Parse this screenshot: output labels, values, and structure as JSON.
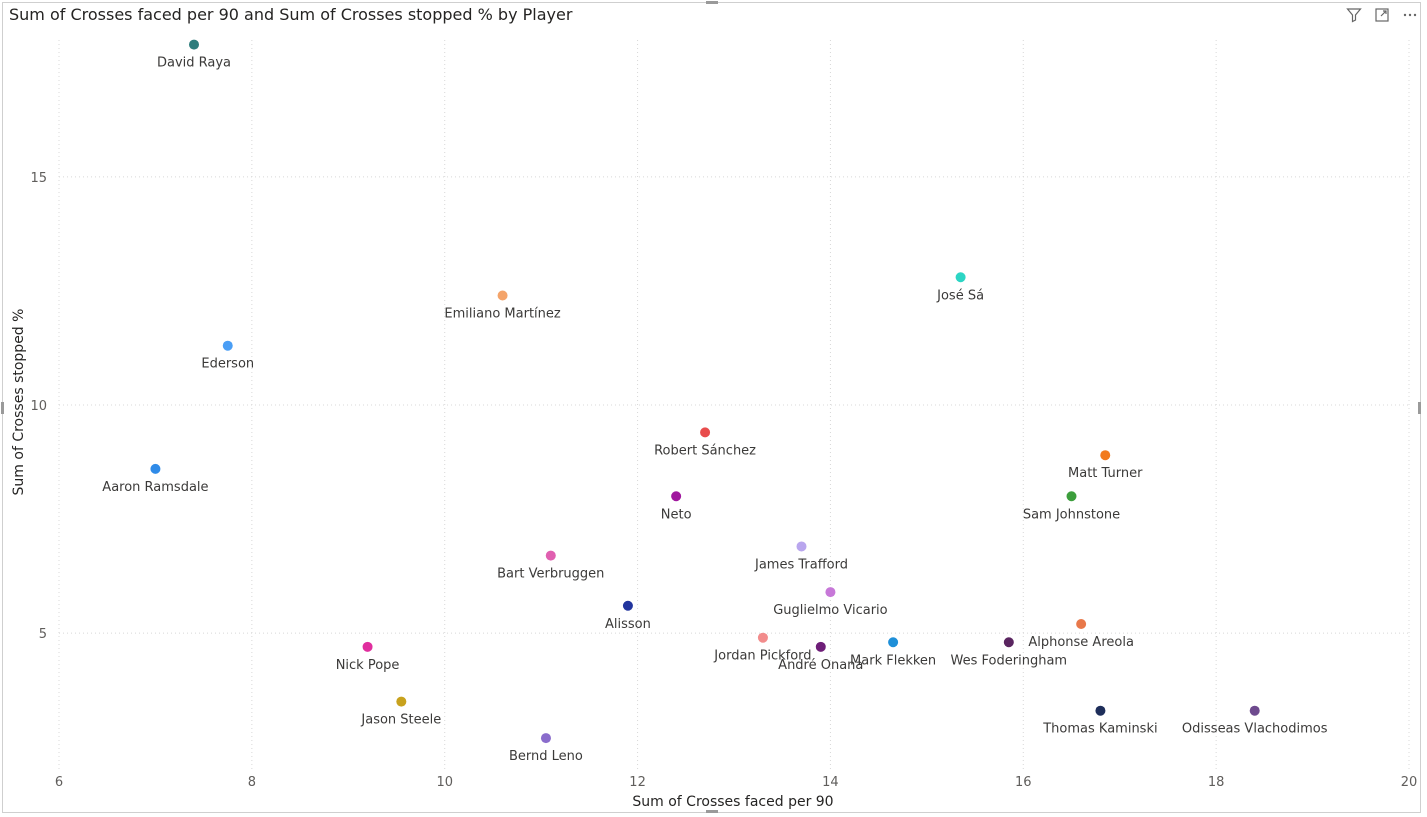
{
  "visual": {
    "title": "Sum of Crosses faced per 90 and Sum of Crosses stopped % by Player",
    "header_icons": [
      "filter-icon",
      "focus-mode-icon",
      "more-options-icon"
    ]
  },
  "chart_data": {
    "type": "scatter",
    "title": "Sum of Crosses faced per 90 and Sum of Crosses stopped % by Player",
    "xlabel": "Sum of Crosses faced per 90",
    "ylabel": "Sum of Crosses stopped %",
    "xlim": [
      6,
      20
    ],
    "ylim": [
      2,
      18
    ],
    "xticks": [
      6,
      8,
      10,
      12,
      14,
      16,
      18,
      20
    ],
    "yticks": [
      5,
      10,
      15
    ],
    "grid": true,
    "points": [
      {
        "label": "David Raya",
        "x": 7.4,
        "y": 17.9,
        "color": "#2E7D7D"
      },
      {
        "label": "Ederson",
        "x": 7.75,
        "y": 11.3,
        "color": "#4A9EF5"
      },
      {
        "label": "Aaron Ramsdale",
        "x": 7.0,
        "y": 8.6,
        "color": "#2F8BE8"
      },
      {
        "label": "Emiliano Martínez",
        "x": 10.6,
        "y": 12.4,
        "color": "#F4A46A"
      },
      {
        "label": "José Sá",
        "x": 15.35,
        "y": 12.8,
        "color": "#2CD5C4"
      },
      {
        "label": "Robert Sánchez",
        "x": 12.7,
        "y": 9.4,
        "color": "#E84C4C"
      },
      {
        "label": "Neto",
        "x": 12.4,
        "y": 8.0,
        "color": "#A0179E"
      },
      {
        "label": "Matt Turner",
        "x": 16.85,
        "y": 8.9,
        "color": "#F27A1D"
      },
      {
        "label": "Sam Johnstone",
        "x": 16.5,
        "y": 8.0,
        "color": "#3C9E3C"
      },
      {
        "label": "Bart Verbruggen",
        "x": 11.1,
        "y": 6.7,
        "color": "#E060B0"
      },
      {
        "label": "James Trafford",
        "x": 13.7,
        "y": 6.9,
        "color": "#B9A6EE"
      },
      {
        "label": "Alisson",
        "x": 11.9,
        "y": 5.6,
        "color": "#22359E"
      },
      {
        "label": "Guglielmo Vicario",
        "x": 14.0,
        "y": 5.9,
        "color": "#C778D8"
      },
      {
        "label": "Alphonse Areola",
        "x": 16.6,
        "y": 5.2,
        "color": "#E8784A"
      },
      {
        "label": "Jordan Pickford",
        "x": 13.3,
        "y": 4.9,
        "color": "#F28C8C"
      },
      {
        "label": "André Onana",
        "x": 13.9,
        "y": 4.7,
        "color": "#6E1E78"
      },
      {
        "label": "Mark Flekken",
        "x": 14.65,
        "y": 4.8,
        "color": "#1E8FD8"
      },
      {
        "label": "Wes Foderingham",
        "x": 15.85,
        "y": 4.8,
        "color": "#5A2560"
      },
      {
        "label": "Nick Pope",
        "x": 9.2,
        "y": 4.7,
        "color": "#E02E9E"
      },
      {
        "label": "Jason Steele",
        "x": 9.55,
        "y": 3.5,
        "color": "#C8A21E"
      },
      {
        "label": "Bernd Leno",
        "x": 11.05,
        "y": 2.7,
        "color": "#8A6CCC"
      },
      {
        "label": "Thomas Kaminski",
        "x": 16.8,
        "y": 3.3,
        "color": "#1E2E5A"
      },
      {
        "label": "Odisseas Vlachodimos",
        "x": 18.4,
        "y": 3.3,
        "color": "#6E4A8E"
      }
    ]
  }
}
